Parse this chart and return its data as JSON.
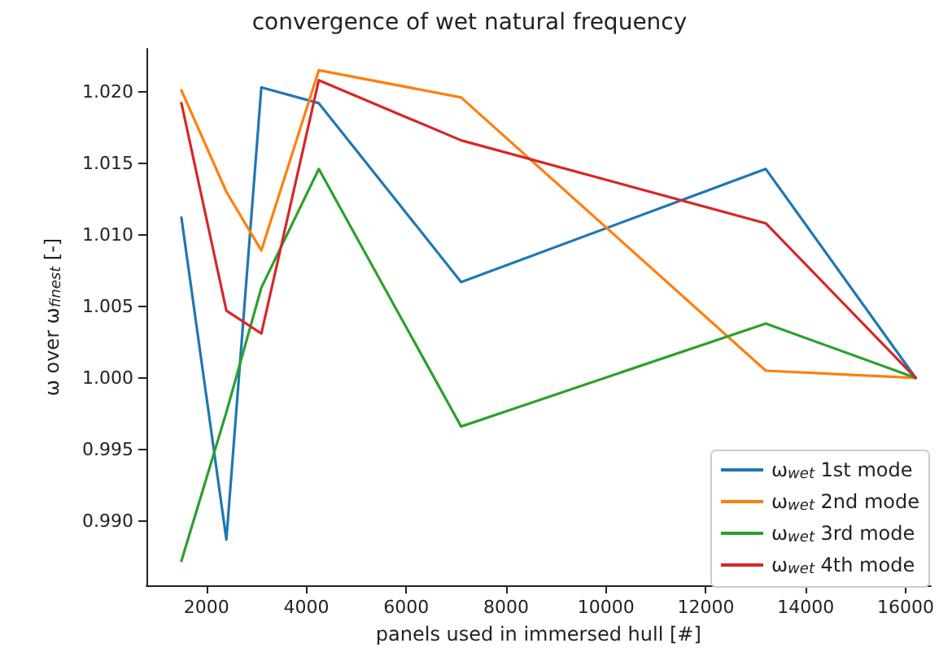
{
  "chart_data": {
    "type": "line",
    "title": "convergence of wet natural frequency",
    "xlabel": "panels used in immersed hull [#]",
    "ylabel": "ω over ω$_{finest}$ [-]",
    "x": [
      1500,
      2400,
      3100,
      4250,
      7100,
      13200,
      16200
    ],
    "series": [
      {
        "name": "ω$_{wet}$ 1st mode",
        "color": "#1f77b4",
        "values": [
          1.0112,
          0.9887,
          1.0203,
          1.0192,
          1.0067,
          1.0146,
          1.0
        ]
      },
      {
        "name": "ω$_{wet}$ 2nd mode",
        "color": "#ff7f0e",
        "values": [
          1.0201,
          1.013,
          1.0089,
          1.0215,
          1.0196,
          1.0005,
          1.0
        ]
      },
      {
        "name": "ω$_{wet}$ 3rd mode",
        "color": "#2ca02c",
        "values": [
          0.9872,
          0.9976,
          1.0063,
          1.0146,
          0.9966,
          1.0038,
          1.0
        ]
      },
      {
        "name": "ω$_{wet}$ 4th mode",
        "color": "#d62728",
        "values": [
          1.0192,
          1.0047,
          1.0031,
          1.0208,
          1.0166,
          1.0108,
          1.0
        ]
      }
    ],
    "xlim": [
      800,
      16500
    ],
    "xticks": [
      2000,
      4000,
      6000,
      8000,
      10000,
      12000,
      14000,
      16000
    ],
    "ylim": [
      0.9855,
      1.023
    ],
    "yticks": [
      {
        "value": 0.99,
        "label": "0.990"
      },
      0.995,
      {
        "value": 1.0,
        "label": "1.000"
      },
      1.005,
      {
        "value": 1.01,
        "label": "1.010"
      },
      1.015,
      {
        "value": 1.02,
        "label": "1.020"
      }
    ],
    "grid": false,
    "legend": "bottom right",
    "marker": "none",
    "line_style": "solid"
  }
}
